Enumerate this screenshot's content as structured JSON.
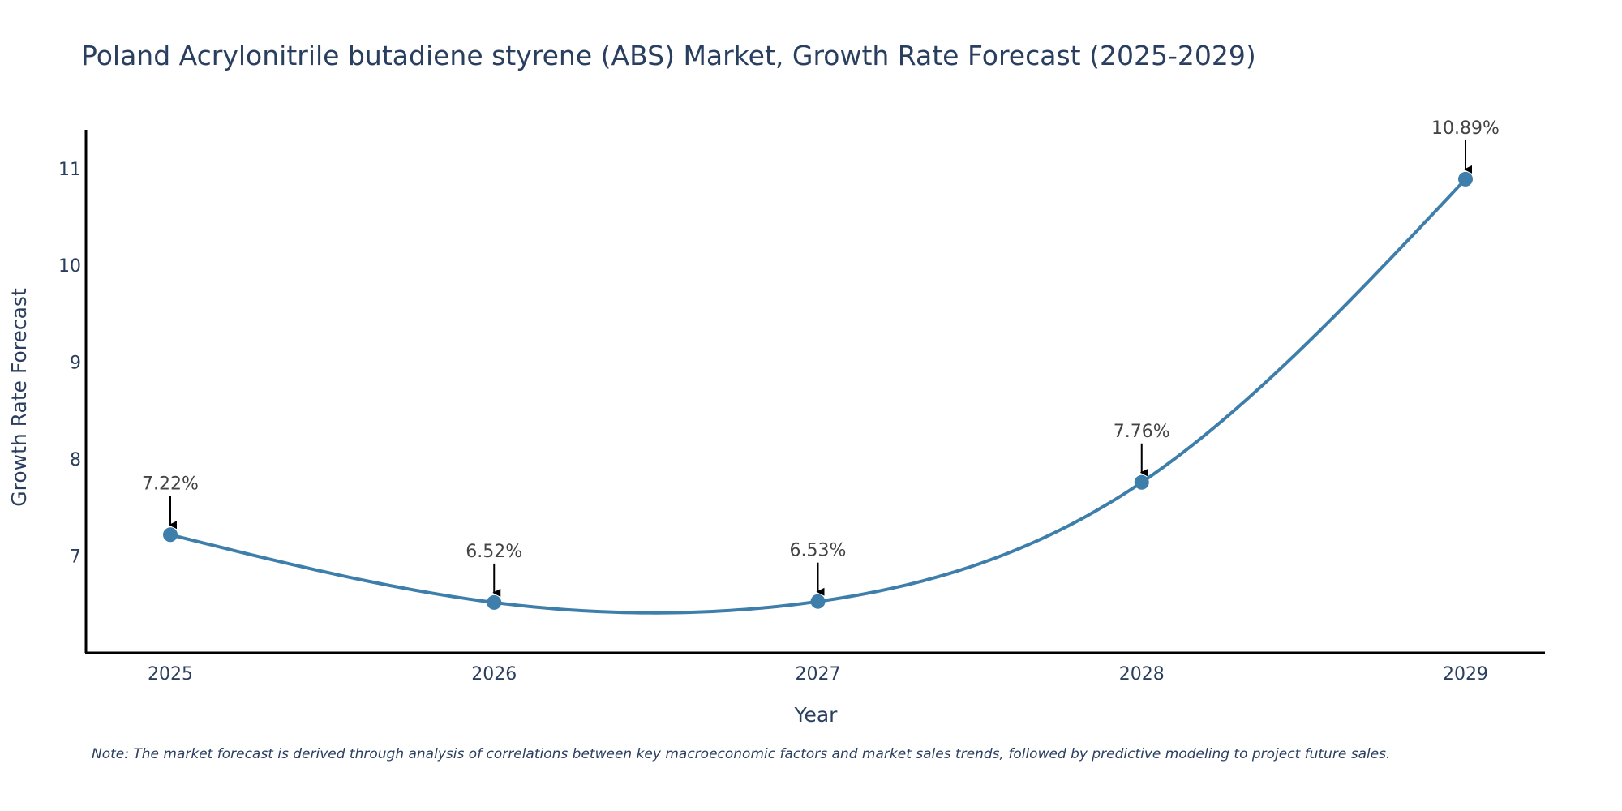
{
  "chart_data": {
    "type": "line",
    "title": "Poland Acrylonitrile butadiene styrene (ABS) Market, Growth Rate Forecast (2025-2029)",
    "xlabel": "Year",
    "ylabel": "Growth Rate Forecast",
    "categories": [
      "2025",
      "2026",
      "2027",
      "2028",
      "2029"
    ],
    "values": [
      7.22,
      6.52,
      6.53,
      7.76,
      10.89
    ],
    "labels": [
      "7.22%",
      "6.52%",
      "6.53%",
      "7.76%",
      "10.89%"
    ],
    "y_ticks": [
      7,
      8,
      9,
      10,
      11
    ],
    "ylim": [
      6.0,
      11.4
    ],
    "grid": false,
    "line_color": "#3e7eab",
    "marker_color": "#3e7eab",
    "arrow_color": "#000000",
    "text_color": "#2a3f5f"
  },
  "note": "Note: The market forecast is derived through analysis of correlations between key macroeconomic factors and market sales trends, followed by predictive modeling to project future sales."
}
